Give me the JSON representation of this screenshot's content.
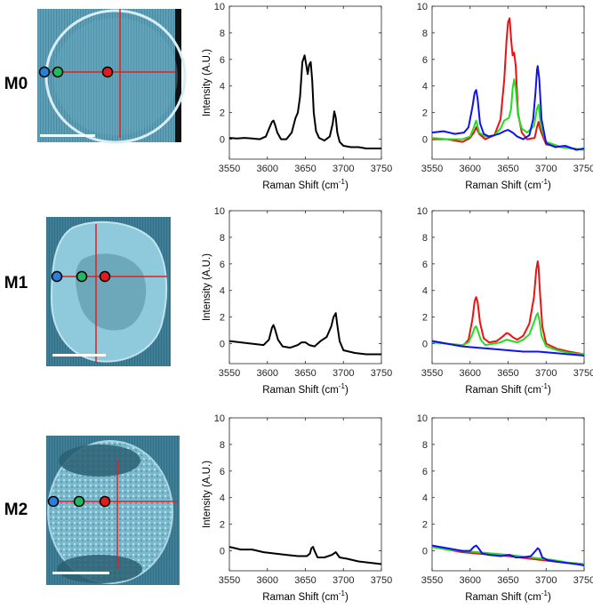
{
  "colors": {
    "black": "#000000",
    "red": "#ee1111",
    "green": "#22dd22",
    "blue": "#1111ee",
    "image_bg": "#5aa0b8",
    "crosshair": "#e02020"
  },
  "row_labels": [
    "M0",
    "M1",
    "M2"
  ],
  "micrograph_icons": [
    "scale-bar-icon",
    "crosshair-icon",
    "probe-point-icon"
  ],
  "chart_data": [
    {
      "panel": "M0-mean",
      "type": "line",
      "xlabel": "Raman Shift (cm",
      "xlabel_sup": "-1",
      "xlabel_end": ")",
      "ylabel": "Intensity (A.U.)",
      "xlim": [
        3550,
        3750
      ],
      "ylim": [
        -1.5,
        10
      ],
      "xticks": [
        3550,
        3600,
        3650,
        3700,
        3750
      ],
      "yticks": [
        0,
        2,
        4,
        6,
        8,
        10
      ],
      "series": [
        {
          "name": "mean",
          "color": "black",
          "x": [
            3550,
            3560,
            3570,
            3580,
            3590,
            3598,
            3603,
            3606,
            3608,
            3610,
            3613,
            3618,
            3625,
            3632,
            3637,
            3640,
            3643,
            3646,
            3649,
            3651,
            3653,
            3655,
            3657,
            3659,
            3661,
            3664,
            3668,
            3675,
            3682,
            3686,
            3688,
            3690,
            3692,
            3695,
            3700,
            3710,
            3720,
            3730,
            3740,
            3750
          ],
          "y": [
            0.1,
            0.05,
            0.1,
            0.05,
            0.0,
            0.2,
            0.9,
            1.3,
            1.4,
            1.1,
            0.5,
            0.0,
            0.0,
            0.5,
            1.6,
            2.0,
            3.2,
            5.8,
            6.3,
            5.6,
            4.9,
            5.6,
            5.8,
            4.4,
            2.0,
            0.6,
            0.1,
            -0.1,
            0.2,
            1.2,
            2.1,
            1.6,
            0.5,
            -0.2,
            -0.5,
            -0.6,
            -0.6,
            -0.7,
            -0.7,
            -0.7
          ]
        }
      ]
    },
    {
      "panel": "M0-points",
      "type": "line",
      "xlabel": "Raman Shift (cm",
      "xlabel_sup": "-1",
      "xlabel_end": ")",
      "ylabel": "",
      "xlim": [
        3550,
        3750
      ],
      "ylim": [
        -1.5,
        10
      ],
      "xticks": [
        3550,
        3600,
        3650,
        3700,
        3750
      ],
      "yticks": [
        0,
        2,
        4,
        6,
        8,
        10
      ],
      "series": [
        {
          "name": "red-point",
          "color": "red",
          "x": [
            3550,
            3570,
            3590,
            3600,
            3605,
            3608,
            3612,
            3620,
            3632,
            3640,
            3645,
            3648,
            3650,
            3652,
            3654,
            3656,
            3658,
            3660,
            3663,
            3668,
            3675,
            3685,
            3688,
            3690,
            3693,
            3700,
            3720,
            3750
          ],
          "y": [
            0.0,
            0.0,
            -0.2,
            0.1,
            0.5,
            0.9,
            0.4,
            0.0,
            0.3,
            1.5,
            4.5,
            7.5,
            8.8,
            9.1,
            7.5,
            6.3,
            6.5,
            5.5,
            2.0,
            0.5,
            0.0,
            0.1,
            0.9,
            1.3,
            0.6,
            -0.4,
            -0.6,
            -0.8
          ]
        },
        {
          "name": "green-point",
          "color": "green",
          "x": [
            3550,
            3570,
            3590,
            3600,
            3605,
            3608,
            3612,
            3620,
            3632,
            3640,
            3645,
            3648,
            3651,
            3654,
            3656,
            3658,
            3660,
            3663,
            3668,
            3675,
            3684,
            3688,
            3690,
            3693,
            3700,
            3720,
            3750
          ],
          "y": [
            0.1,
            0.0,
            0.0,
            0.2,
            0.9,
            1.4,
            0.5,
            0.2,
            0.3,
            0.8,
            1.4,
            1.5,
            1.6,
            2.3,
            3.8,
            4.5,
            3.8,
            1.8,
            0.8,
            0.5,
            1.0,
            2.3,
            2.6,
            1.0,
            -0.2,
            -0.6,
            -0.8
          ]
        },
        {
          "name": "blue-point",
          "color": "blue",
          "x": [
            3550,
            3565,
            3580,
            3592,
            3598,
            3603,
            3606,
            3608,
            3610,
            3613,
            3618,
            3625,
            3632,
            3638,
            3645,
            3650,
            3656,
            3662,
            3670,
            3678,
            3683,
            3686,
            3688,
            3689,
            3691,
            3694,
            3700,
            3712,
            3725,
            3740,
            3750
          ],
          "y": [
            0.5,
            0.6,
            0.4,
            0.5,
            0.9,
            2.4,
            3.5,
            3.7,
            3.0,
            1.2,
            0.4,
            0.2,
            0.3,
            0.4,
            0.6,
            0.7,
            0.5,
            0.2,
            0.0,
            0.3,
            1.5,
            3.5,
            5.2,
            5.5,
            4.5,
            1.5,
            -0.3,
            -0.6,
            -0.5,
            -0.8,
            -0.7
          ]
        }
      ]
    },
    {
      "panel": "M1-mean",
      "type": "line",
      "xlabel": "Raman Shift (cm",
      "xlabel_sup": "-1",
      "xlabel_end": ")",
      "ylabel": "Intensity (A.U.)",
      "xlim": [
        3550,
        3750
      ],
      "ylim": [
        -1.5,
        10
      ],
      "xticks": [
        3550,
        3600,
        3650,
        3700,
        3750
      ],
      "yticks": [
        0,
        2,
        4,
        6,
        8,
        10
      ],
      "series": [
        {
          "name": "mean",
          "color": "black",
          "x": [
            3550,
            3565,
            3580,
            3595,
            3602,
            3606,
            3608,
            3610,
            3614,
            3620,
            3630,
            3640,
            3645,
            3650,
            3655,
            3662,
            3670,
            3678,
            3684,
            3687,
            3690,
            3692,
            3695,
            3700,
            3715,
            3730,
            3750
          ],
          "y": [
            0.2,
            0.1,
            0.0,
            -0.1,
            0.3,
            1.2,
            1.4,
            1.1,
            0.3,
            -0.2,
            -0.3,
            -0.1,
            0.1,
            0.1,
            -0.1,
            -0.2,
            0.2,
            0.5,
            1.3,
            2.0,
            2.3,
            1.4,
            0.2,
            -0.5,
            -0.7,
            -0.8,
            -0.8
          ]
        }
      ]
    },
    {
      "panel": "M1-points",
      "type": "line",
      "xlabel": "Raman Shift (cm",
      "xlabel_sup": "-1",
      "xlabel_end": ")",
      "ylabel": "",
      "xlim": [
        3550,
        3750
      ],
      "ylim": [
        -1.5,
        10
      ],
      "xticks": [
        3550,
        3600,
        3650,
        3700,
        3750
      ],
      "yticks": [
        0,
        2,
        4,
        6,
        8,
        10
      ],
      "series": [
        {
          "name": "red-point",
          "color": "red",
          "x": [
            3550,
            3570,
            3590,
            3598,
            3603,
            3606,
            3608,
            3610,
            3613,
            3618,
            3625,
            3635,
            3642,
            3648,
            3652,
            3656,
            3662,
            3670,
            3678,
            3684,
            3687,
            3689,
            3690,
            3692,
            3695,
            3700,
            3715,
            3730,
            3750
          ],
          "y": [
            0.2,
            0.0,
            -0.2,
            0.3,
            1.8,
            3.2,
            3.5,
            3.1,
            1.6,
            0.4,
            0.1,
            0.2,
            0.5,
            0.8,
            0.7,
            0.5,
            0.3,
            0.6,
            1.5,
            3.5,
            5.5,
            6.2,
            5.8,
            3.8,
            1.3,
            0.0,
            -0.4,
            -0.6,
            -0.8
          ]
        },
        {
          "name": "green-point",
          "color": "green",
          "x": [
            3550,
            3570,
            3590,
            3598,
            3603,
            3606,
            3608,
            3610,
            3614,
            3620,
            3630,
            3640,
            3648,
            3655,
            3662,
            3670,
            3678,
            3684,
            3687,
            3689,
            3691,
            3694,
            3700,
            3715,
            3730,
            3750
          ],
          "y": [
            0.1,
            0.0,
            -0.1,
            0.1,
            0.7,
            1.2,
            1.3,
            1.0,
            0.3,
            -0.1,
            0.0,
            0.1,
            0.3,
            0.2,
            0.1,
            0.3,
            0.7,
            1.6,
            2.1,
            2.3,
            1.8,
            0.6,
            -0.2,
            -0.5,
            -0.7,
            -0.8
          ]
        },
        {
          "name": "blue-point",
          "color": "blue",
          "x": [
            3550,
            3570,
            3590,
            3610,
            3630,
            3650,
            3670,
            3690,
            3710,
            3730,
            3750
          ],
          "y": [
            0.2,
            0.0,
            -0.2,
            -0.3,
            -0.4,
            -0.5,
            -0.6,
            -0.6,
            -0.7,
            -0.8,
            -0.9
          ]
        }
      ]
    },
    {
      "panel": "M2-mean",
      "type": "line",
      "xlabel": "Raman Shift (cm",
      "xlabel_sup": "-1",
      "xlabel_end": ")",
      "ylabel": "Intensity (A.U.)",
      "xlim": [
        3550,
        3750
      ],
      "ylim": [
        -1.5,
        10
      ],
      "xticks": [
        3550,
        3600,
        3650,
        3700,
        3750
      ],
      "yticks": [
        0,
        2,
        4,
        6,
        8,
        10
      ],
      "series": [
        {
          "name": "mean",
          "color": "black",
          "x": [
            3550,
            3565,
            3580,
            3595,
            3610,
            3625,
            3640,
            3652,
            3656,
            3658,
            3660,
            3662,
            3666,
            3675,
            3685,
            3690,
            3695,
            3705,
            3720,
            3735,
            3750
          ],
          "y": [
            0.3,
            0.1,
            0.1,
            -0.1,
            -0.2,
            -0.3,
            -0.4,
            -0.4,
            -0.2,
            0.2,
            0.3,
            0.0,
            -0.5,
            -0.5,
            -0.3,
            -0.1,
            -0.5,
            -0.6,
            -0.8,
            -0.9,
            -1.0
          ]
        }
      ]
    },
    {
      "panel": "M2-points",
      "type": "line",
      "xlabel": "Raman Shift (cm",
      "xlabel_sup": "-1",
      "xlabel_end": ")",
      "ylabel": "",
      "xlim": [
        3550,
        3750
      ],
      "ylim": [
        -1.5,
        10
      ],
      "xticks": [
        3550,
        3600,
        3650,
        3700,
        3750
      ],
      "yticks": [
        0,
        2,
        4,
        6,
        8,
        10
      ],
      "series": [
        {
          "name": "red-point",
          "color": "red",
          "x": [
            3550,
            3570,
            3590,
            3610,
            3630,
            3650,
            3665,
            3680,
            3695,
            3710,
            3730,
            3750
          ],
          "y": [
            0.3,
            0.1,
            -0.1,
            -0.2,
            -0.3,
            -0.4,
            -0.5,
            -0.6,
            -0.7,
            -0.8,
            -0.9,
            -1.0
          ]
        },
        {
          "name": "green-point",
          "color": "green",
          "x": [
            3550,
            3570,
            3590,
            3610,
            3630,
            3650,
            3665,
            3680,
            3695,
            3710,
            3730,
            3750
          ],
          "y": [
            0.3,
            0.1,
            0.0,
            -0.1,
            -0.2,
            -0.3,
            -0.4,
            -0.5,
            -0.6,
            -0.7,
            -0.9,
            -1.0
          ]
        },
        {
          "name": "blue-point",
          "color": "blue",
          "x": [
            3550,
            3570,
            3590,
            3600,
            3605,
            3608,
            3611,
            3616,
            3625,
            3640,
            3652,
            3660,
            3670,
            3680,
            3686,
            3689,
            3691,
            3695,
            3702,
            3712,
            3725,
            3740,
            3750
          ],
          "y": [
            0.4,
            0.2,
            0.0,
            0.0,
            0.3,
            0.4,
            0.2,
            -0.2,
            -0.3,
            -0.4,
            -0.3,
            -0.5,
            -0.5,
            -0.4,
            0.0,
            0.2,
            0.1,
            -0.5,
            -0.7,
            -0.8,
            -0.9,
            -1.0,
            -1.1
          ]
        }
      ]
    }
  ]
}
